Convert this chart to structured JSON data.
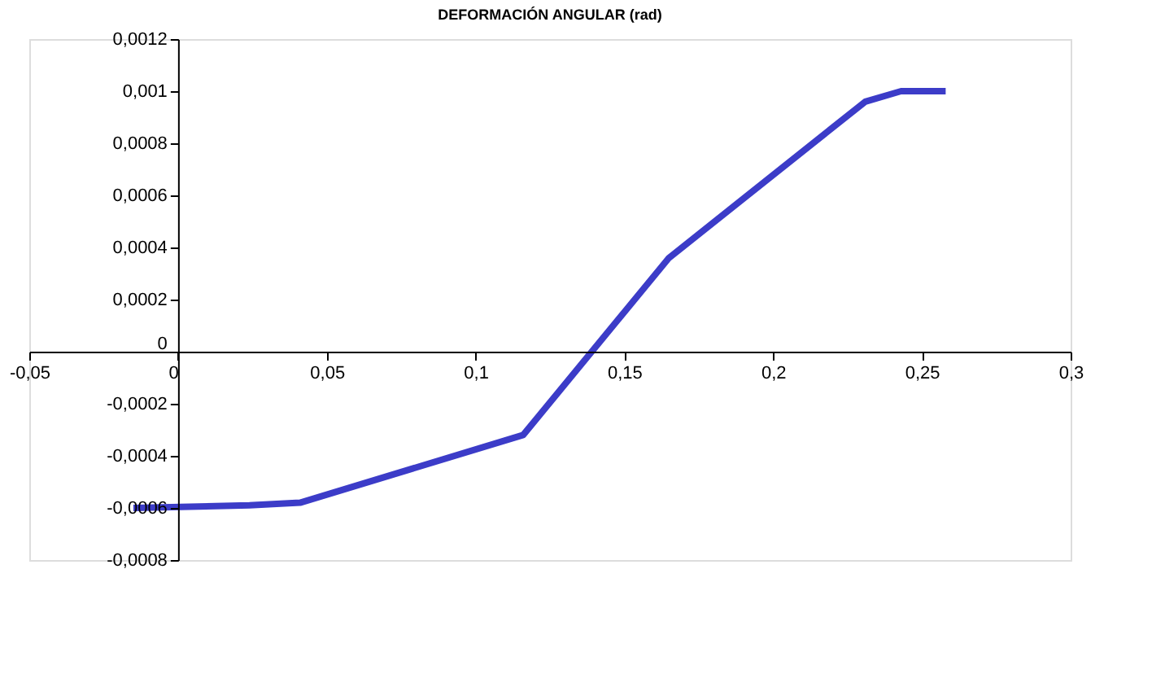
{
  "chart_data": {
    "type": "line",
    "title": "DEFORMACIÓN ANGULAR (rad)",
    "x": [
      -0.015,
      0.024,
      0.041,
      0.116,
      0.165,
      0.231,
      0.243,
      0.258
    ],
    "series": [
      {
        "color": "#3c3cc8",
        "values": [
          -0.0006,
          -0.00059,
          -0.00058,
          -0.00032,
          0.00036,
          0.00096,
          0.001,
          0.001
        ]
      }
    ],
    "xlim": [
      -0.05,
      0.3
    ],
    "xticks": [
      {
        "value": -0.05,
        "label": "-0,05"
      },
      0,
      {
        "value": 0.05,
        "label": "0,05"
      },
      {
        "value": 0.1,
        "label": "0,1"
      },
      {
        "value": 0.15,
        "label": "0,15"
      },
      {
        "value": 0.2,
        "label": "0,2"
      },
      {
        "value": 0.25,
        "label": "0,25"
      },
      {
        "value": 0.3,
        "label": "0,3"
      }
    ],
    "ylim": [
      -0.0008,
      0.0012
    ],
    "yticks": [
      {
        "value": -0.0008,
        "label": "-0,0008"
      },
      {
        "value": -0.0006,
        "label": "-0,0006"
      },
      {
        "value": -0.0004,
        "label": "-0,0004"
      },
      {
        "value": -0.0002,
        "label": "-0,0002"
      },
      0,
      {
        "value": 0.0002,
        "label": "0,0002"
      },
      {
        "value": 0.0004,
        "label": "0,0004"
      },
      {
        "value": 0.0006,
        "label": "0,0006"
      },
      {
        "value": 0.0008,
        "label": "0,0008"
      },
      {
        "value": 0.001,
        "label": "0,001"
      },
      {
        "value": 0.0012,
        "label": "0,0012"
      }
    ],
    "grid": false,
    "legend": false,
    "marker": "none",
    "line_style": "solid"
  }
}
